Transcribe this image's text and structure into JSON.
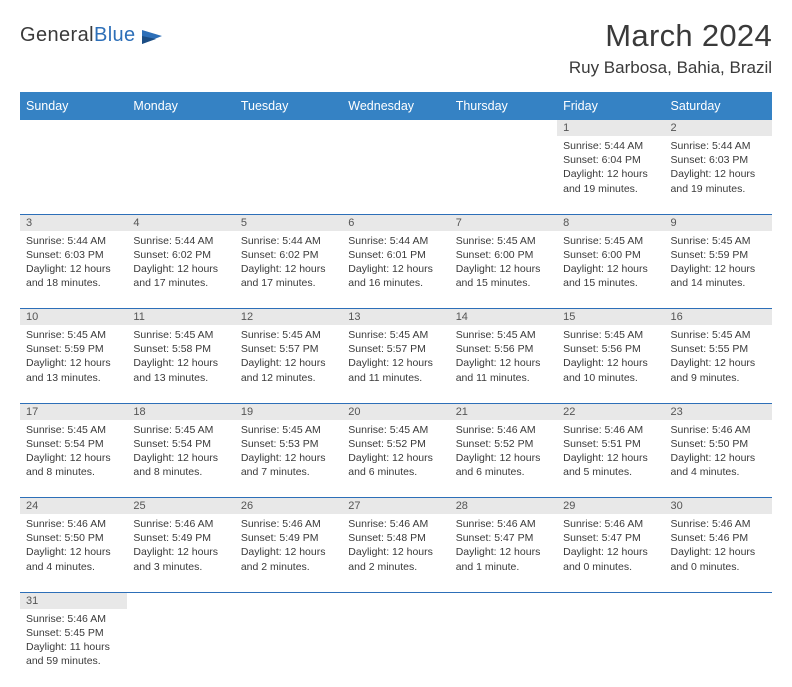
{
  "logo": {
    "word1": "General",
    "word2": "Blue"
  },
  "title": "March 2024",
  "location": "Ruy Barbosa, Bahia, Brazil",
  "colors": {
    "header_bg": "#3582c4",
    "header_text": "#ffffff",
    "row_border": "#2d6fb8",
    "daynum_bg": "#e8e8e8",
    "text": "#3a3a3a"
  },
  "day_headers": [
    "Sunday",
    "Monday",
    "Tuesday",
    "Wednesday",
    "Thursday",
    "Friday",
    "Saturday"
  ],
  "weeks": [
    [
      null,
      null,
      null,
      null,
      null,
      {
        "n": "1",
        "sr": "Sunrise: 5:44 AM",
        "ss": "Sunset: 6:04 PM",
        "dl1": "Daylight: 12 hours",
        "dl2": "and 19 minutes."
      },
      {
        "n": "2",
        "sr": "Sunrise: 5:44 AM",
        "ss": "Sunset: 6:03 PM",
        "dl1": "Daylight: 12 hours",
        "dl2": "and 19 minutes."
      }
    ],
    [
      {
        "n": "3",
        "sr": "Sunrise: 5:44 AM",
        "ss": "Sunset: 6:03 PM",
        "dl1": "Daylight: 12 hours",
        "dl2": "and 18 minutes."
      },
      {
        "n": "4",
        "sr": "Sunrise: 5:44 AM",
        "ss": "Sunset: 6:02 PM",
        "dl1": "Daylight: 12 hours",
        "dl2": "and 17 minutes."
      },
      {
        "n": "5",
        "sr": "Sunrise: 5:44 AM",
        "ss": "Sunset: 6:02 PM",
        "dl1": "Daylight: 12 hours",
        "dl2": "and 17 minutes."
      },
      {
        "n": "6",
        "sr": "Sunrise: 5:44 AM",
        "ss": "Sunset: 6:01 PM",
        "dl1": "Daylight: 12 hours",
        "dl2": "and 16 minutes."
      },
      {
        "n": "7",
        "sr": "Sunrise: 5:45 AM",
        "ss": "Sunset: 6:00 PM",
        "dl1": "Daylight: 12 hours",
        "dl2": "and 15 minutes."
      },
      {
        "n": "8",
        "sr": "Sunrise: 5:45 AM",
        "ss": "Sunset: 6:00 PM",
        "dl1": "Daylight: 12 hours",
        "dl2": "and 15 minutes."
      },
      {
        "n": "9",
        "sr": "Sunrise: 5:45 AM",
        "ss": "Sunset: 5:59 PM",
        "dl1": "Daylight: 12 hours",
        "dl2": "and 14 minutes."
      }
    ],
    [
      {
        "n": "10",
        "sr": "Sunrise: 5:45 AM",
        "ss": "Sunset: 5:59 PM",
        "dl1": "Daylight: 12 hours",
        "dl2": "and 13 minutes."
      },
      {
        "n": "11",
        "sr": "Sunrise: 5:45 AM",
        "ss": "Sunset: 5:58 PM",
        "dl1": "Daylight: 12 hours",
        "dl2": "and 13 minutes."
      },
      {
        "n": "12",
        "sr": "Sunrise: 5:45 AM",
        "ss": "Sunset: 5:57 PM",
        "dl1": "Daylight: 12 hours",
        "dl2": "and 12 minutes."
      },
      {
        "n": "13",
        "sr": "Sunrise: 5:45 AM",
        "ss": "Sunset: 5:57 PM",
        "dl1": "Daylight: 12 hours",
        "dl2": "and 11 minutes."
      },
      {
        "n": "14",
        "sr": "Sunrise: 5:45 AM",
        "ss": "Sunset: 5:56 PM",
        "dl1": "Daylight: 12 hours",
        "dl2": "and 11 minutes."
      },
      {
        "n": "15",
        "sr": "Sunrise: 5:45 AM",
        "ss": "Sunset: 5:56 PM",
        "dl1": "Daylight: 12 hours",
        "dl2": "and 10 minutes."
      },
      {
        "n": "16",
        "sr": "Sunrise: 5:45 AM",
        "ss": "Sunset: 5:55 PM",
        "dl1": "Daylight: 12 hours",
        "dl2": "and 9 minutes."
      }
    ],
    [
      {
        "n": "17",
        "sr": "Sunrise: 5:45 AM",
        "ss": "Sunset: 5:54 PM",
        "dl1": "Daylight: 12 hours",
        "dl2": "and 8 minutes."
      },
      {
        "n": "18",
        "sr": "Sunrise: 5:45 AM",
        "ss": "Sunset: 5:54 PM",
        "dl1": "Daylight: 12 hours",
        "dl2": "and 8 minutes."
      },
      {
        "n": "19",
        "sr": "Sunrise: 5:45 AM",
        "ss": "Sunset: 5:53 PM",
        "dl1": "Daylight: 12 hours",
        "dl2": "and 7 minutes."
      },
      {
        "n": "20",
        "sr": "Sunrise: 5:45 AM",
        "ss": "Sunset: 5:52 PM",
        "dl1": "Daylight: 12 hours",
        "dl2": "and 6 minutes."
      },
      {
        "n": "21",
        "sr": "Sunrise: 5:46 AM",
        "ss": "Sunset: 5:52 PM",
        "dl1": "Daylight: 12 hours",
        "dl2": "and 6 minutes."
      },
      {
        "n": "22",
        "sr": "Sunrise: 5:46 AM",
        "ss": "Sunset: 5:51 PM",
        "dl1": "Daylight: 12 hours",
        "dl2": "and 5 minutes."
      },
      {
        "n": "23",
        "sr": "Sunrise: 5:46 AM",
        "ss": "Sunset: 5:50 PM",
        "dl1": "Daylight: 12 hours",
        "dl2": "and 4 minutes."
      }
    ],
    [
      {
        "n": "24",
        "sr": "Sunrise: 5:46 AM",
        "ss": "Sunset: 5:50 PM",
        "dl1": "Daylight: 12 hours",
        "dl2": "and 4 minutes."
      },
      {
        "n": "25",
        "sr": "Sunrise: 5:46 AM",
        "ss": "Sunset: 5:49 PM",
        "dl1": "Daylight: 12 hours",
        "dl2": "and 3 minutes."
      },
      {
        "n": "26",
        "sr": "Sunrise: 5:46 AM",
        "ss": "Sunset: 5:49 PM",
        "dl1": "Daylight: 12 hours",
        "dl2": "and 2 minutes."
      },
      {
        "n": "27",
        "sr": "Sunrise: 5:46 AM",
        "ss": "Sunset: 5:48 PM",
        "dl1": "Daylight: 12 hours",
        "dl2": "and 2 minutes."
      },
      {
        "n": "28",
        "sr": "Sunrise: 5:46 AM",
        "ss": "Sunset: 5:47 PM",
        "dl1": "Daylight: 12 hours",
        "dl2": "and 1 minute."
      },
      {
        "n": "29",
        "sr": "Sunrise: 5:46 AM",
        "ss": "Sunset: 5:47 PM",
        "dl1": "Daylight: 12 hours",
        "dl2": "and 0 minutes."
      },
      {
        "n": "30",
        "sr": "Sunrise: 5:46 AM",
        "ss": "Sunset: 5:46 PM",
        "dl1": "Daylight: 12 hours",
        "dl2": "and 0 minutes."
      }
    ],
    [
      {
        "n": "31",
        "sr": "Sunrise: 5:46 AM",
        "ss": "Sunset: 5:45 PM",
        "dl1": "Daylight: 11 hours",
        "dl2": "and 59 minutes."
      },
      null,
      null,
      null,
      null,
      null,
      null
    ]
  ]
}
